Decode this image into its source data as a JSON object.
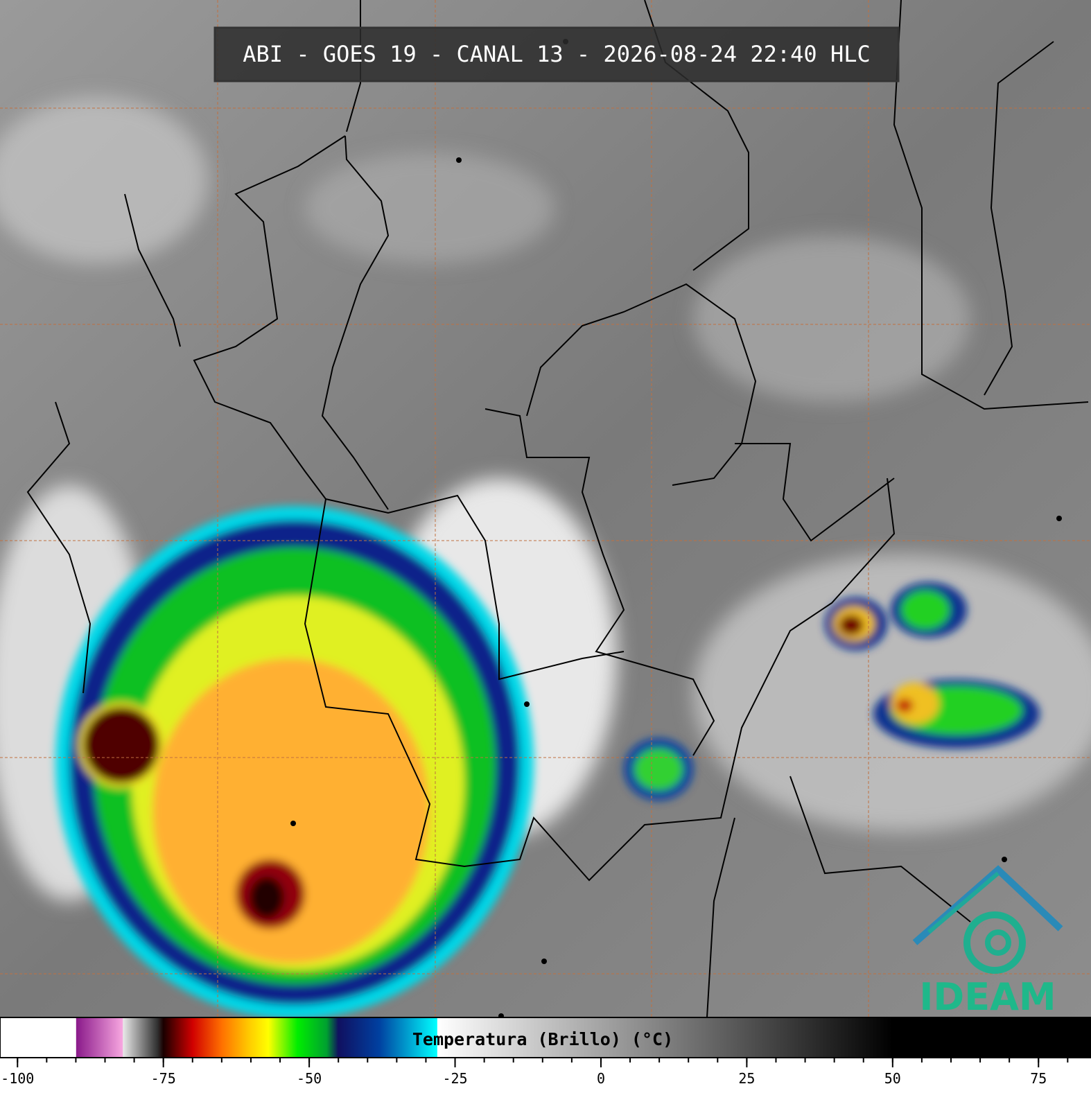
{
  "title": "ABI - GOES 19 - CANAL 13 - 2026-08-24 22:40 HLC",
  "logo": "IDEAM",
  "colorbar": {
    "label": "Temperatura (Brillo) (°C)",
    "lim": [
      -103,
      84
    ],
    "ticks": [
      -100,
      -75,
      -50,
      -25,
      0,
      25,
      50,
      75
    ],
    "minor_ticks": [
      -100,
      -95,
      -90,
      -85,
      -80,
      -75,
      -70,
      -65,
      -60,
      -55,
      -50,
      -45,
      -40,
      -35,
      -30,
      -25,
      -20,
      -15,
      -10,
      -5,
      0,
      5,
      10,
      15,
      20,
      25,
      30,
      35,
      40,
      45,
      50,
      55,
      60,
      65,
      70,
      75,
      80
    ],
    "colormap": [
      {
        "value": -103,
        "color": "#ffffff"
      },
      {
        "value": -90,
        "color": "#ffffff"
      },
      {
        "value": -89.9,
        "color": "#8a1a8a"
      },
      {
        "value": -82,
        "color": "#f7a6e0"
      },
      {
        "value": -81.9,
        "color": "#e8e8e8"
      },
      {
        "value": -76,
        "color": "#303030"
      },
      {
        "value": -75,
        "color": "#1a0000"
      },
      {
        "value": -70,
        "color": "#d00000"
      },
      {
        "value": -65,
        "color": "#ff7000"
      },
      {
        "value": -60,
        "color": "#ffd000"
      },
      {
        "value": -57,
        "color": "#ffff00"
      },
      {
        "value": -52,
        "color": "#00ee00"
      },
      {
        "value": -47,
        "color": "#00a030"
      },
      {
        "value": -45,
        "color": "#101060"
      },
      {
        "value": -38,
        "color": "#0040a0"
      },
      {
        "value": -28.1,
        "color": "#00ffff"
      },
      {
        "value": -28,
        "color": "#ffffff"
      },
      {
        "value": 50,
        "color": "#000000"
      },
      {
        "value": 84,
        "color": "#000000"
      }
    ]
  }
}
